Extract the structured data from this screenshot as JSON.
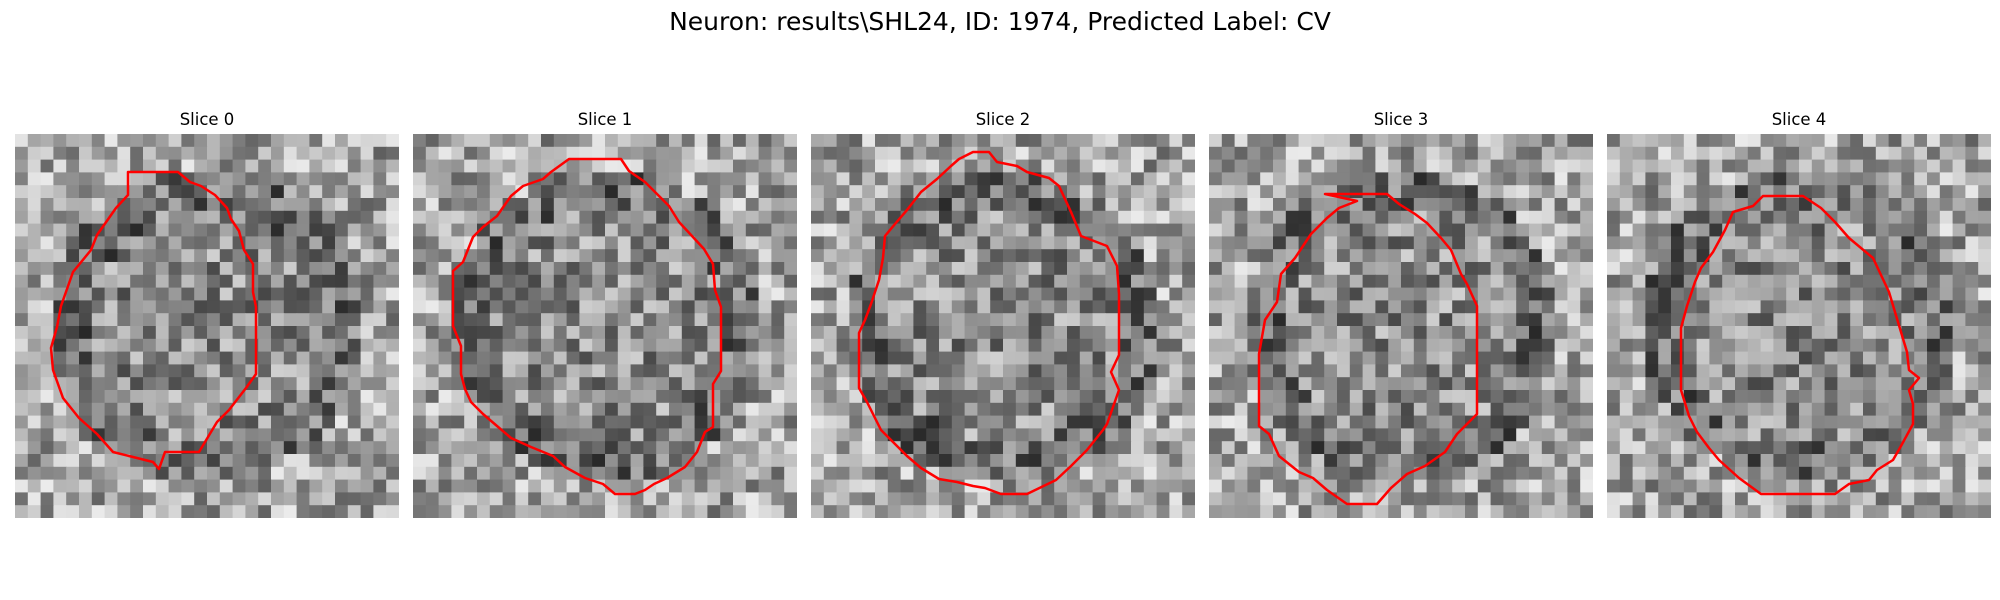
{
  "figure": {
    "title": "Neuron: results\\SHL24, ID: 1974, Predicted Label: CV"
  },
  "style": {
    "contour_color": "#ff0000",
    "colormap": "grayscale"
  },
  "panels": [
    {
      "title": "Slice 0"
    },
    {
      "title": "Slice 1"
    },
    {
      "title": "Slice 2"
    },
    {
      "title": "Slice 3"
    },
    {
      "title": "Slice 4"
    }
  ]
}
